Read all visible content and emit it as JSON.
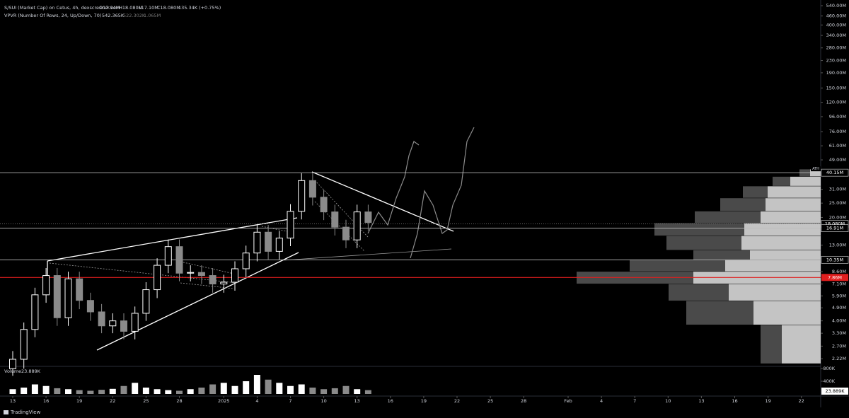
{
  "chart_data": {
    "type": "candlestick",
    "title": "S/SUI (Market Cap) on Cetus, 4h, dexscreener.com",
    "ohlc_labels": [
      "O17.94M",
      "H18.080M",
      "L17.10M",
      "C18.080M",
      "135.34K (+0.75%)"
    ],
    "indicator": "VPVR (Number Of Rows, 24, Up/Down, 70)",
    "indicator_values": [
      "542.365K",
      "522.302K",
      "1.065M"
    ],
    "volume_title": "Volume",
    "volume_last": "23.889K",
    "brand": "TradingView",
    "log_scale": true,
    "up_color": "#ffffff",
    "down_color": "#8a8a8a",
    "x": [
      0,
      1,
      2,
      3,
      4,
      5,
      6,
      7,
      8,
      9,
      10,
      11,
      12,
      13,
      14,
      15,
      16,
      17,
      18,
      19,
      20,
      21,
      22,
      23,
      24,
      25,
      26,
      27,
      28,
      29,
      30,
      31,
      32
    ],
    "open": [
      1.9,
      2.2,
      3.5,
      6.0,
      8.1,
      4.2,
      7.7,
      5.5,
      4.6,
      3.7,
      4.0,
      3.4,
      4.5,
      6.5,
      9.5,
      12.7,
      8.4,
      8.5,
      8.1,
      7.1,
      7.3,
      9.0,
      11.5,
      15.9,
      11.8,
      14.5,
      22.0,
      35.5,
      27.4,
      21.8,
      17.2,
      14.1,
      21.8
    ],
    "high": [
      2.5,
      3.9,
      6.7,
      9.1,
      9.1,
      8.6,
      8.6,
      6.2,
      5.2,
      4.5,
      4.5,
      5.0,
      7.3,
      10.6,
      14.2,
      14.2,
      9.5,
      9.5,
      9.1,
      8.2,
      10.1,
      12.9,
      17.8,
      17.8,
      16.2,
      24.6,
      39.8,
      39.8,
      30.7,
      24.4,
      19.3,
      24.4,
      24.4
    ],
    "low": [
      1.7,
      1.9,
      3.1,
      5.3,
      3.7,
      3.7,
      4.8,
      4.0,
      3.3,
      3.3,
      3.0,
      3.0,
      4.0,
      5.7,
      8.4,
      7.4,
      7.4,
      7.1,
      6.2,
      6.2,
      6.4,
      7.9,
      10.1,
      10.4,
      10.4,
      12.8,
      19.4,
      24.1,
      19.2,
      15.1,
      12.4,
      12.4,
      16.3
    ],
    "close": [
      2.2,
      3.5,
      6.0,
      8.1,
      4.2,
      7.7,
      5.5,
      4.6,
      3.7,
      4.0,
      3.4,
      4.5,
      6.5,
      9.5,
      12.7,
      8.4,
      8.5,
      8.1,
      7.1,
      7.3,
      9.0,
      11.5,
      15.9,
      11.8,
      14.5,
      22.0,
      35.5,
      27.4,
      21.8,
      17.2,
      14.1,
      21.8,
      18.5
    ],
    "volume": [
      150,
      200,
      300,
      250,
      180,
      150,
      120,
      100,
      130,
      160,
      250,
      350,
      200,
      150,
      120,
      100,
      150,
      200,
      300,
      350,
      250,
      400,
      600,
      450,
      350,
      250,
      300,
      200,
      150,
      180,
      250,
      150,
      120
    ],
    "xlim": [
      -0.5,
      73
    ],
    "ylim": [
      1.97,
      590
    ],
    "volume_ylim": [
      0,
      889
    ],
    "xticks": [
      {
        "value": 0,
        "label": "13"
      },
      {
        "value": 3,
        "label": "16"
      },
      {
        "value": 6,
        "label": "19"
      },
      {
        "value": 9,
        "label": "22"
      },
      {
        "value": 12,
        "label": "25"
      },
      {
        "value": 15,
        "label": "28"
      },
      {
        "value": 19,
        "label": "2025"
      },
      {
        "value": 22,
        "label": "4"
      },
      {
        "value": 25,
        "label": "7"
      },
      {
        "value": 28,
        "label": "10"
      },
      {
        "value": 31,
        "label": "13"
      },
      {
        "value": 34,
        "label": "16"
      },
      {
        "value": 37,
        "label": "19"
      },
      {
        "value": 40,
        "label": "22"
      },
      {
        "value": 43,
        "label": "25"
      },
      {
        "value": 46,
        "label": "28"
      },
      {
        "value": 50,
        "label": "Feb"
      },
      {
        "value": 53,
        "label": "4"
      },
      {
        "value": 56,
        "label": "7"
      },
      {
        "value": 59,
        "label": "10"
      },
      {
        "value": 62,
        "label": "13"
      },
      {
        "value": 65,
        "label": "16"
      },
      {
        "value": 68,
        "label": "19"
      },
      {
        "value": 71,
        "label": "22"
      }
    ],
    "yticks": [
      {
        "value": 540,
        "label": "540.00M"
      },
      {
        "value": 460,
        "label": "460.00M"
      },
      {
        "value": 400,
        "label": "400.00M"
      },
      {
        "value": 340,
        "label": "340.00M"
      },
      {
        "value": 280,
        "label": "280.00M"
      },
      {
        "value": 230,
        "label": "230.00M"
      },
      {
        "value": 190,
        "label": "190.00M"
      },
      {
        "value": 150,
        "label": "150.00M"
      },
      {
        "value": 120,
        "label": "120.00M"
      },
      {
        "value": 96,
        "label": "96.00M"
      },
      {
        "value": 76,
        "label": "76.00M"
      },
      {
        "value": 61,
        "label": "61.00M"
      },
      {
        "value": 49,
        "label": "49.00M"
      },
      {
        "value": 31,
        "label": "31.00M"
      },
      {
        "value": 25,
        "label": "25.00M"
      },
      {
        "value": 20,
        "label": "20.00M"
      },
      {
        "value": 13,
        "label": "13.00M"
      },
      {
        "value": 8.6,
        "label": "8.60M"
      },
      {
        "value": 7.1,
        "label": "7.10M"
      },
      {
        "value": 5.9,
        "label": "5.90M"
      },
      {
        "value": 4.9,
        "label": "4.90M"
      },
      {
        "value": 4,
        "label": "4.00M"
      },
      {
        "value": 3.3,
        "label": "3.30M"
      },
      {
        "value": 2.7,
        "label": "2.70M"
      },
      {
        "value": 2.22,
        "label": "2.22M"
      }
    ],
    "volume_yticks": [
      {
        "value": 800,
        "label": "800K"
      },
      {
        "value": 400,
        "label": "400K"
      }
    ],
    "levels": [
      {
        "value": 40.15,
        "label": "40.15M",
        "color": "#cccccc",
        "tag": "ATH"
      },
      {
        "value": 18.08,
        "label": "18.080M",
        "color": "#888888"
      },
      {
        "value": 16.91,
        "label": "16.91M",
        "color": "#bbbbbb"
      },
      {
        "value": 10.35,
        "label": "10.35M",
        "color": "#bbbbbb"
      },
      {
        "value": 7.86,
        "label": "7.86M",
        "color": "#e01e1e"
      }
    ],
    "profile": {
      "edges": [
        42.3,
        37.7,
        32.5,
        27.0,
        22.0,
        18.3,
        15.0,
        12.0,
        10.3,
        8.6,
        7.1,
        5.45,
        3.75,
        2.05
      ],
      "up": [
        15,
        43,
        75,
        78,
        85,
        108,
        112,
        100,
        135,
        180,
        130,
        95,
        55
      ],
      "down": [
        15,
        25,
        35,
        64,
        93,
        127,
        106,
        80,
        135,
        165,
        85,
        95,
        30
      ],
      "up_color": "#c4c4c4",
      "down_color": "#4a4a4a"
    }
  }
}
